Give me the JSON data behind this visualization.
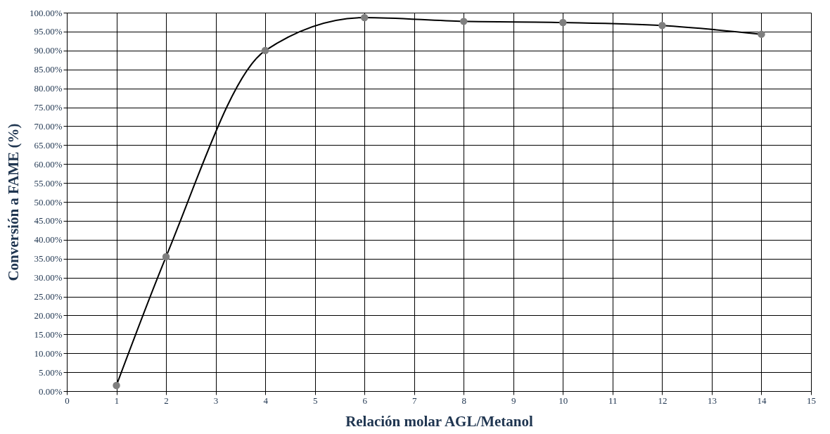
{
  "chart_data": {
    "type": "line",
    "xlabel": "Relación molar AGL/Metanol",
    "ylabel": "Conversión a FAME (%)",
    "x": [
      1,
      2,
      4,
      6,
      8,
      10,
      12,
      14
    ],
    "series": [
      {
        "color": "#000000",
        "colors": [
          "#7f7f7f",
          "#7f7f7f",
          "#7f7f7f",
          "#7f7f7f",
          "#7f7f7f",
          "#7f7f7f",
          "#7f7f7f",
          "#7f7f7f"
        ],
        "values": [
          1.5,
          35.5,
          90,
          98.7,
          97.7,
          97.4,
          96.6,
          94.3
        ]
      }
    ],
    "xlim": [
      0,
      15
    ],
    "xticks": [
      0,
      1,
      2,
      3,
      4,
      5,
      6,
      7,
      8,
      9,
      10,
      11,
      12,
      13,
      14,
      15
    ],
    "ylim": [
      0,
      100
    ],
    "yticks": [
      {
        "value": 0,
        "label": "0.00%"
      },
      {
        "value": 5,
        "label": "5.00%"
      },
      {
        "value": 10,
        "label": "10.00%"
      },
      {
        "value": 15,
        "label": "15.00%"
      },
      {
        "value": 20,
        "label": "20.00%"
      },
      {
        "value": 25,
        "label": "25.00%"
      },
      {
        "value": 30,
        "label": "30.00%"
      },
      {
        "value": 35,
        "label": "35.00%"
      },
      {
        "value": 40,
        "label": "40.00%"
      },
      {
        "value": 45,
        "label": "45.00%"
      },
      {
        "value": 50,
        "label": "50.00%"
      },
      {
        "value": 55,
        "label": "55.00%"
      },
      {
        "value": 60,
        "label": "60.00%"
      },
      {
        "value": 65,
        "label": "65.00%"
      },
      {
        "value": 70,
        "label": "70.00%"
      },
      {
        "value": 75,
        "label": "75.00%"
      },
      {
        "value": 80,
        "label": "80.00%"
      },
      {
        "value": 85,
        "label": "85.00%"
      },
      {
        "value": 90,
        "label": "90.00%"
      },
      {
        "value": 95,
        "label": "95.00%"
      },
      {
        "value": 100,
        "label": "100.00%"
      }
    ],
    "grid": true,
    "marker": "circle",
    "line_style": "solid"
  }
}
